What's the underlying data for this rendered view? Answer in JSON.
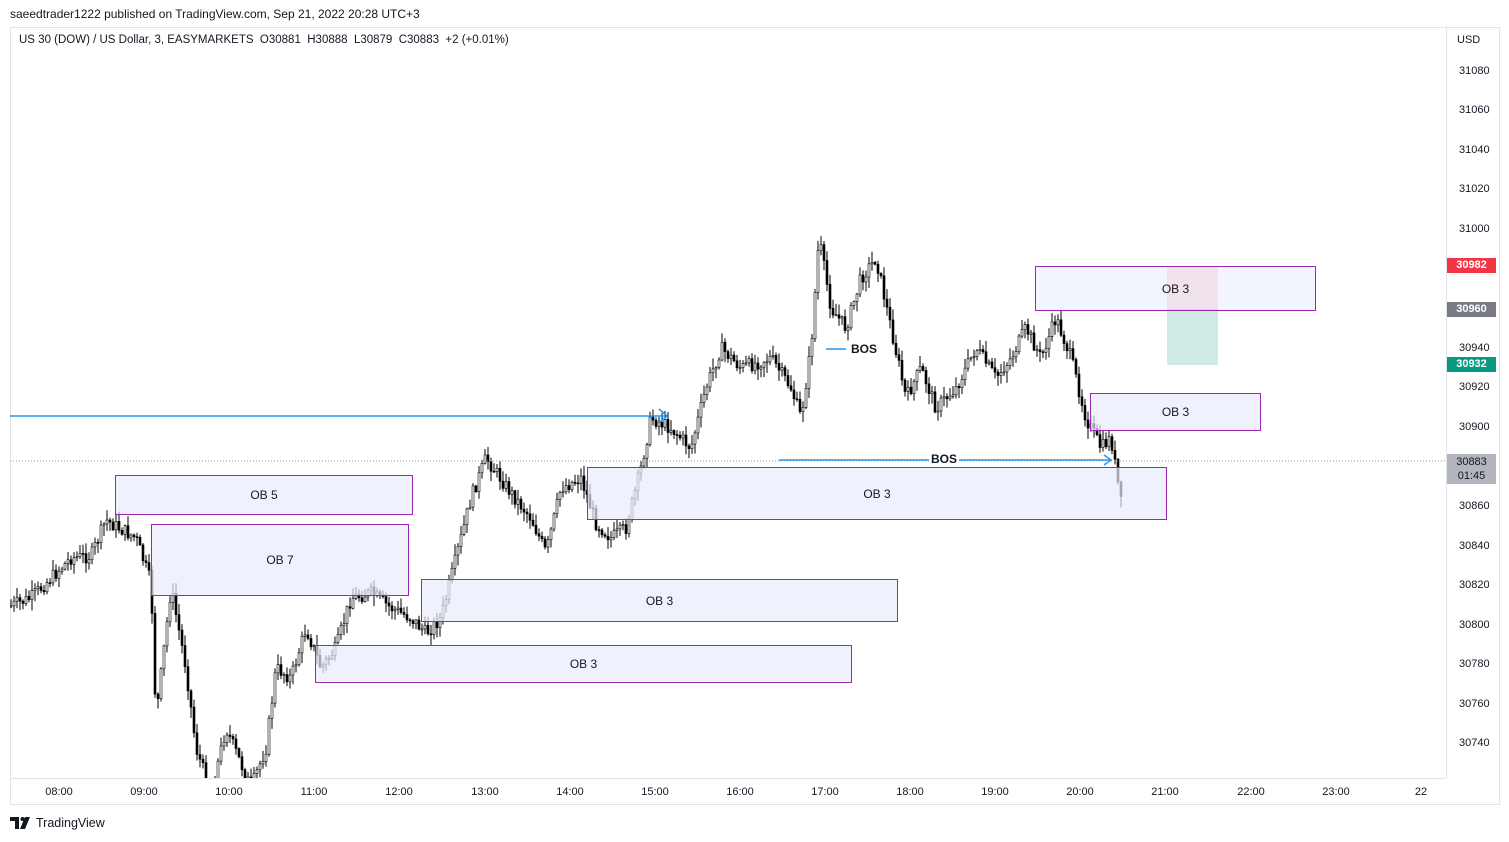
{
  "header": {
    "published_by": "saeedtrader1222 published on TradingView.com, Sep 21, 2022 20:28 UTC+3"
  },
  "symbol": {
    "title": "US 30 (DOW) / US Dollar, 3, EASYMARKETS",
    "open": "O30881",
    "high": "H30888",
    "low": "L30879",
    "close": "C30883",
    "change": "+2 (+0.01%)"
  },
  "price_axis": {
    "currency": "USD",
    "ticks": [
      "31080",
      "31060",
      "31040",
      "31020",
      "31000",
      "30940",
      "30920",
      "30900",
      "30860",
      "30840",
      "30820",
      "30800",
      "30780",
      "30760",
      "30740"
    ],
    "badges": {
      "stop": "30982",
      "entry": "30960",
      "target": "30932",
      "current_price": "30883",
      "countdown": "01:45"
    }
  },
  "time_axis": {
    "ticks": [
      "08:00",
      "09:00",
      "10:00",
      "11:00",
      "12:00",
      "13:00",
      "14:00",
      "15:00",
      "16:00",
      "17:00",
      "18:00",
      "19:00",
      "20:00",
      "21:00",
      "22:00",
      "23:00",
      "22"
    ]
  },
  "annotations": {
    "order_blocks": [
      "OB 5",
      "OB 7",
      "OB 3",
      "OB 3",
      "OB 3",
      "OB 3",
      "OB 3"
    ],
    "bos": [
      "BOS",
      "BOS"
    ]
  },
  "colors": {
    "up": "#ffffff",
    "down": "#000000",
    "line": "#2196f3",
    "ob_border": "#9c27b0",
    "stop": "#f23645",
    "target": "#089981"
  },
  "footer": {
    "brand": "TradingView"
  }
}
